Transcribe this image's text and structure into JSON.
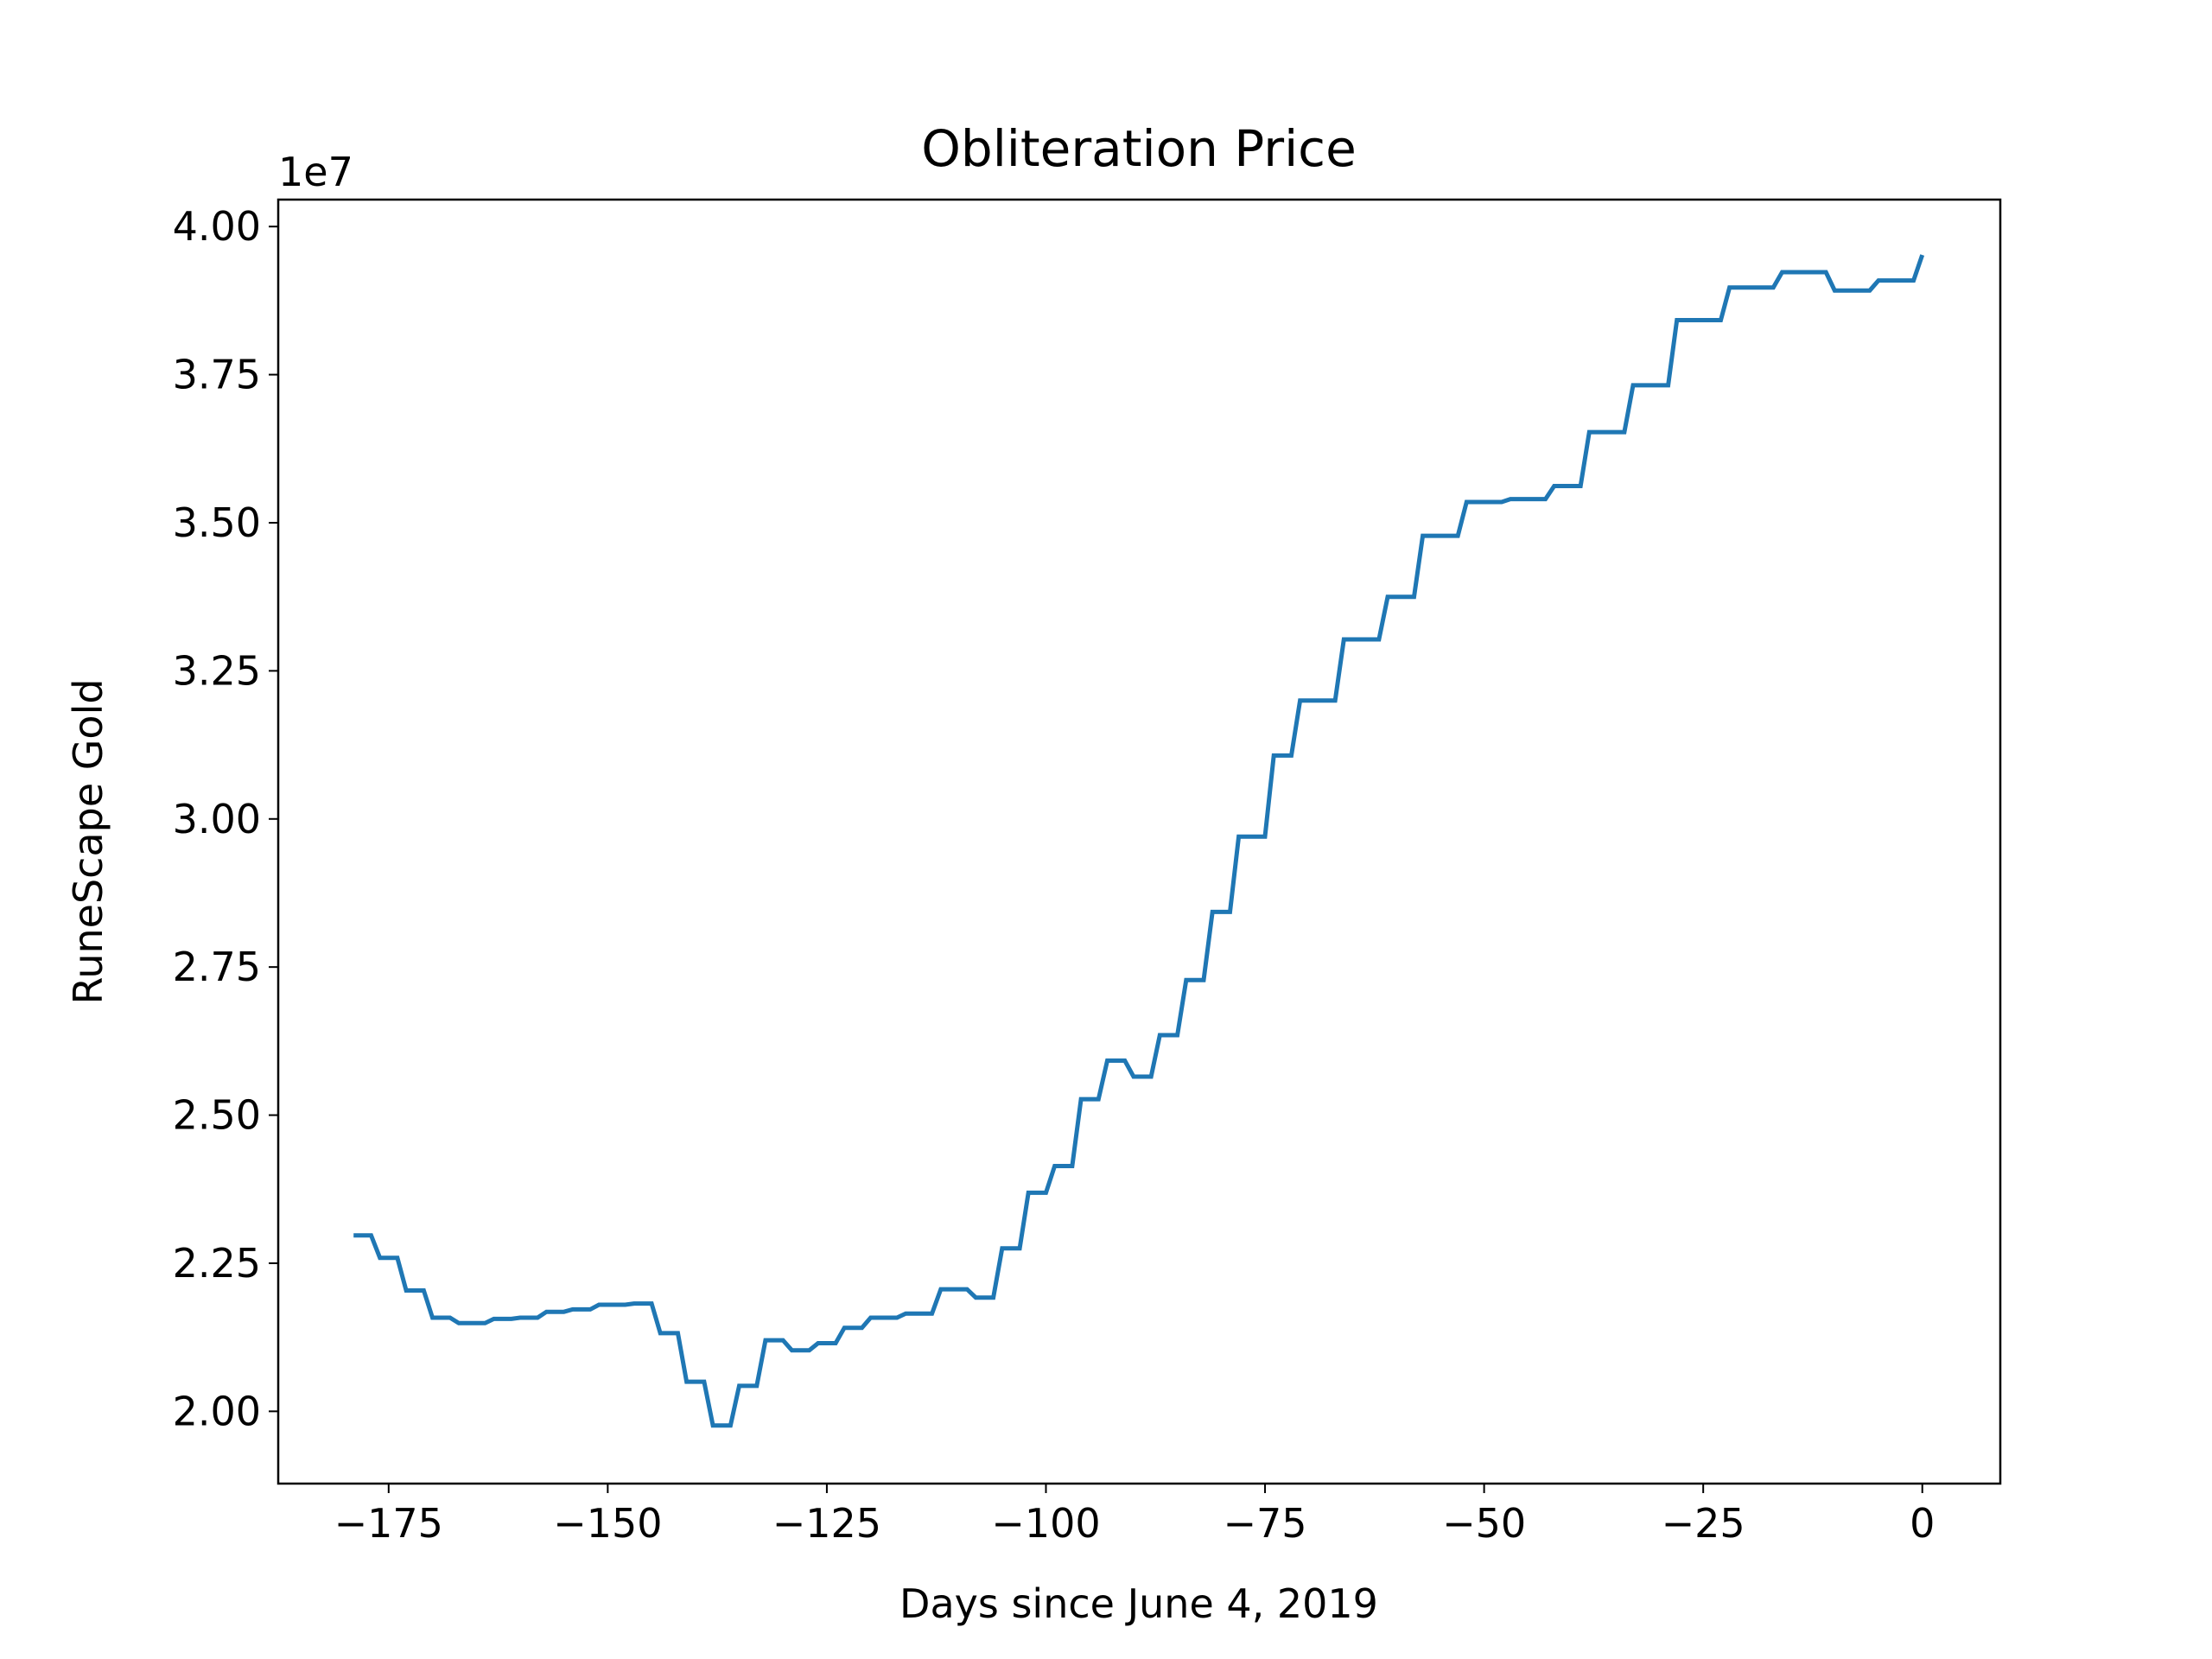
{
  "chart_data": {
    "type": "line",
    "title": "Obliteration Price",
    "xlabel": "Days since June 4, 2019",
    "ylabel": "RuneScape Gold",
    "y_offset_label": "1e7",
    "x": [
      -179,
      -177,
      -176,
      -174,
      -173,
      -171,
      -170,
      -168,
      -167,
      -164,
      -163,
      -161,
      -160,
      -158,
      -157,
      -155,
      -154,
      -152,
      -151,
      -148,
      -147,
      -145,
      -144,
      -142,
      -141,
      -139,
      -138,
      -136,
      -135,
      -133,
      -132,
      -130,
      -129,
      -127,
      -126,
      -124,
      -123,
      -121,
      -120,
      -117,
      -116,
      -113,
      -112,
      -109,
      -108,
      -106,
      -105,
      -103,
      -102,
      -100,
      -99,
      -97,
      -96,
      -94,
      -93,
      -91,
      -90,
      -88,
      -87,
      -85,
      -84,
      -82,
      -81,
      -79,
      -78,
      -75,
      -74,
      -72,
      -71,
      -67,
      -66,
      -62,
      -61,
      -58,
      -57,
      -53,
      -52,
      -48,
      -47,
      -43,
      -42,
      -39,
      -38,
      -34,
      -33,
      -29,
      -28,
      -23,
      -22,
      -17,
      -16,
      -11,
      -10,
      -6,
      -5,
      -1,
      0
    ],
    "series": [
      {
        "name": "Obliteration",
        "color": "#1f77b4",
        "values": [
          22970000,
          22970000,
          22590000,
          22590000,
          22040000,
          22040000,
          21580000,
          21580000,
          21490000,
          21490000,
          21560000,
          21560000,
          21580000,
          21580000,
          21680000,
          21680000,
          21720000,
          21720000,
          21800000,
          21800000,
          21820000,
          21820000,
          21320000,
          21320000,
          20500000,
          20500000,
          19760000,
          19760000,
          20430000,
          20430000,
          21200000,
          21200000,
          21030000,
          21030000,
          21150000,
          21150000,
          21410000,
          21410000,
          21580000,
          21580000,
          21650000,
          21650000,
          22060000,
          22060000,
          21920000,
          21920000,
          22750000,
          22750000,
          23690000,
          23690000,
          24140000,
          24140000,
          25270000,
          25270000,
          25920000,
          25920000,
          25650000,
          25650000,
          26350000,
          26350000,
          27280000,
          27280000,
          28430000,
          28430000,
          29700000,
          29700000,
          31070000,
          31070000,
          32000000,
          32000000,
          33030000,
          33030000,
          33750000,
          33750000,
          34780000,
          34780000,
          35350000,
          35350000,
          35400000,
          35400000,
          35620000,
          35620000,
          36530000,
          36530000,
          37320000,
          37320000,
          38420000,
          38420000,
          38970000,
          38970000,
          39230000,
          39230000,
          38920000,
          38920000,
          39090000,
          39090000,
          39520000
        ]
      }
    ],
    "xlim": [
      -187.6,
      8.9
    ],
    "ylim": [
      18780000,
      40455000
    ],
    "xticks": [
      {
        "value": -175,
        "label": "−175"
      },
      {
        "value": -150,
        "label": "−150"
      },
      {
        "value": -125,
        "label": "−125"
      },
      {
        "value": -100,
        "label": "−100"
      },
      {
        "value": -75,
        "label": "−75"
      },
      {
        "value": -50,
        "label": "−50"
      },
      {
        "value": -25,
        "label": "−25"
      },
      0
    ],
    "yticks": [
      {
        "value": 20000000,
        "label": "2.00"
      },
      {
        "value": 22500000,
        "label": "2.25"
      },
      {
        "value": 25000000,
        "label": "2.50"
      },
      {
        "value": 27500000,
        "label": "2.75"
      },
      {
        "value": 30000000,
        "label": "3.00"
      },
      {
        "value": 32500000,
        "label": "3.25"
      },
      {
        "value": 35000000,
        "label": "3.50"
      },
      {
        "value": 37500000,
        "label": "3.75"
      },
      {
        "value": 40000000,
        "label": "4.00"
      }
    ],
    "grid": false
  }
}
